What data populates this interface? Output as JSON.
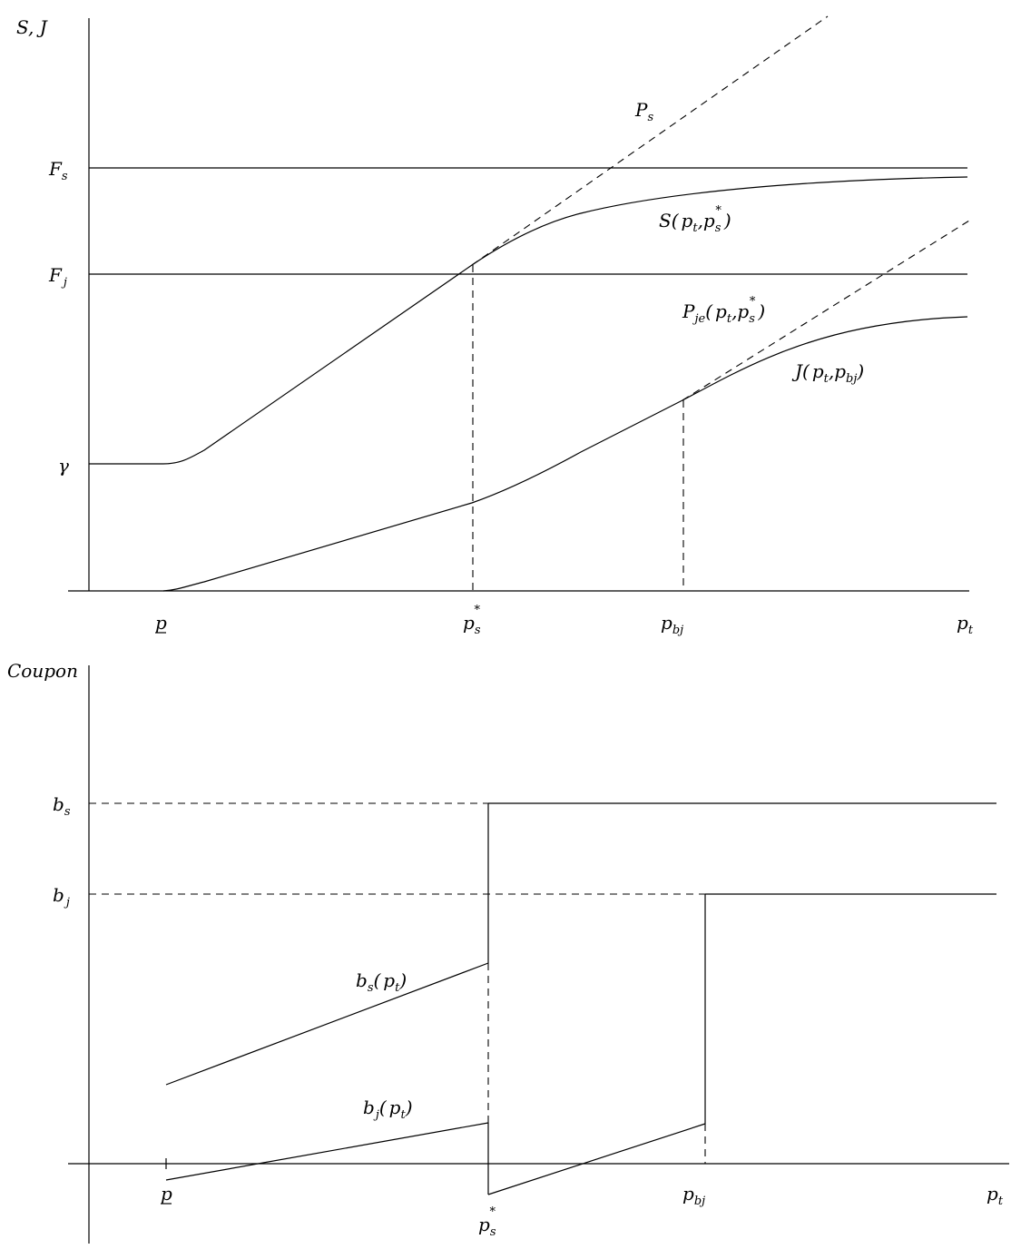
{
  "top_panel": {
    "y_axis_label": "S, J",
    "y_ticks": {
      "Fs": {
        "main": "F",
        "sub": "s"
      },
      "Fj": {
        "main": "F",
        "sub": "j"
      },
      "gamma": "γ"
    },
    "x_ticks": {
      "p_under": "p",
      "ps_star": {
        "main": "p",
        "sub": "s",
        "sup": "*"
      },
      "pbj": {
        "main": "p",
        "sub": "bj"
      },
      "pt": {
        "main": "p",
        "sub": "t"
      }
    },
    "curve_labels": {
      "Ps": {
        "main": "P",
        "sub": "s"
      },
      "S": {
        "a": "S(",
        "b": "p",
        "b_sub": "t",
        "c": ",",
        "d": "p",
        "d_sub": "s",
        "d_sup": "*",
        "e": ")"
      },
      "Pje": {
        "a": "P",
        "a_sub": "je",
        "b": "(",
        "c": "p",
        "c_sub": "t",
        "d": ",",
        "e": "p",
        "e_sub": "s",
        "e_sup": "*",
        "f": ")"
      },
      "J": {
        "a": "J(",
        "b": "p",
        "b_sub": "t",
        "c": ",",
        "d": "p",
        "d_sub": "bj",
        "e": ")"
      }
    }
  },
  "bottom_panel": {
    "y_axis_label": "Coupon",
    "y_ticks": {
      "bs": {
        "main": "b",
        "sub": "s"
      },
      "bj": {
        "main": "b",
        "sub": "j"
      }
    },
    "x_ticks": {
      "p_under": "p",
      "ps_star": {
        "main": "p",
        "sub": "s",
        "sup": "*"
      },
      "pbj": {
        "main": "p",
        "sub": "bj"
      },
      "pt": {
        "main": "p",
        "sub": "t"
      }
    },
    "curve_labels": {
      "bs_pt": {
        "a": "b",
        "a_sub": "s",
        "b": "(",
        "c": "p",
        "c_sub": "t",
        "d": ")"
      },
      "bj_pt": {
        "a": "b",
        "a_sub": "j",
        "b": "(",
        "c": "p",
        "c_sub": "t",
        "d": ")"
      }
    }
  }
}
